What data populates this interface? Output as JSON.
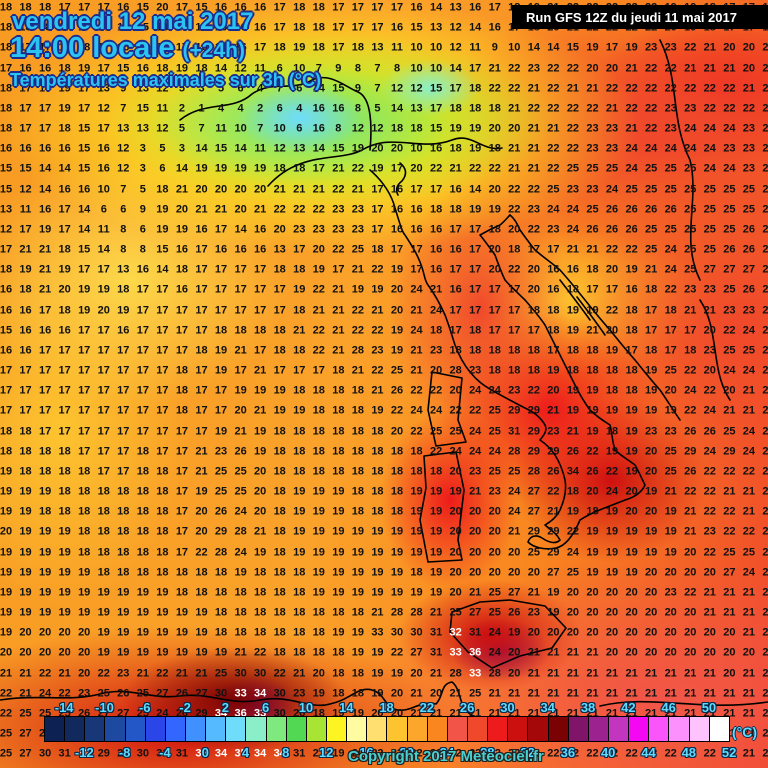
{
  "header": {
    "date_line": "vendredi 12 mai 2017",
    "time_line": "14:00 locale",
    "time_suffix": "(+24h)",
    "subtitle": "Températures maximales sur 3h (°C)",
    "run_info": "Run GFS 12Z du jeudi 11 mai 2017"
  },
  "footer": {
    "copyright": "Copyright 2017 Meteociel.fr",
    "unit_label": "(°C)"
  },
  "colorbar": {
    "unit": "°C",
    "cell_colors": [
      "#0D2152",
      "#11295D",
      "#173779",
      "#1D49A0",
      "#2356C6",
      "#2B46E8",
      "#3366FF",
      "#4090FF",
      "#55BAFF",
      "#6FDCFA",
      "#8AEFC9",
      "#7FE87F",
      "#52D852",
      "#A8E433",
      "#FCF521",
      "#FFFBA1",
      "#FEDF70",
      "#FDC42F",
      "#FCA62B",
      "#F9861F",
      "#F25548",
      "#F0482B",
      "#ED1B1B",
      "#CC0F0F",
      "#A50808",
      "#7A0202",
      "#7F1468",
      "#9C2290",
      "#C135BF",
      "#F408F4",
      "#FA55FA",
      "#FC90FC",
      "#FEC2FE",
      "#FFFFFF"
    ],
    "range_min": -16,
    "range_max": 52,
    "degrees_per_cell": 2,
    "top_labels": [
      "-14",
      "-10",
      "-6",
      "-2",
      "2",
      "6",
      "10",
      "14",
      "18",
      "22",
      "26",
      "30",
      "34",
      "38",
      "42",
      "46",
      "50"
    ],
    "bottom_labels": [
      "-12",
      "-8",
      "-4",
      "0",
      "4",
      "8",
      "12",
      "16",
      "20",
      "24",
      "28",
      "32",
      "36",
      "40",
      "44",
      "48",
      "52"
    ]
  },
  "map": {
    "description": "grid of 3h-max temperature values (°C), 40 columns x 38 rows",
    "rows": [
      "18 18 18 17 17 17 16 15 20 17 15 16 16 16 17 18 18 17 17 17 17 16 14 13 16 17 18 19 21 22 22 22 22 22 19 19 18 17 17 16",
      "18 18 18 17 17 17 16 15 18 17 16 16 16 16 17 18 18 17 17 17 16 15 13 12 14 16 17 18 20 21 22 22 22 22 20 19 18 17 17 16",
      "18 17 17 18 18 17 16 15 17 17 16 16 16 17 18 19 18 17 18 13 11 10 10 12 11 9 10 14 14 15 19 17 19 23 23 22 21 20 20 20",
      "17 16 16 18 19 17 15 16 18 19 18 14 12 11 6 10 7 9 8 7 8 10 10 14 17 21 22 23 22 22 20 20 21 22 22 21 21 21 20 20",
      "18 17 17 19 17 13 9 13 12 5 3 5 6 4 7 6 14 15 9 7 12 12 15 17 18 22 22 21 22 21 21 22 22 22 22 22 22 22 21 21",
      "18 17 17 19 17 12 7 15 11 2 1 4 4 2 6 4 16 16 8 5 14 13 17 18 18 18 21 22 22 22 22 21 22 22 23 23 22 22 22 23",
      "18 17 17 18 15 17 13 13 12 5 7 11 10 7 10 6 16 8 12 12 18 18 15 19 19 20 20 21 21 22 23 23 21 22 23 24 24 24 23 23",
      "16 16 16 16 15 16 12 3 5 3 14 15 14 11 12 13 14 15 19 20 20 10 16 18 19 18 21 21 22 22 23 23 24 24 24 24 24 23 23 23",
      "15 15 14 14 15 16 12 3 6 14 19 19 19 19 18 18 17 21 22 19 17 20 22 21 22 22 21 21 22 25 25 25 24 25 25 25 24 24 23 23",
      "15 12 14 16 16 10 7 5 18 21 20 20 20 20 21 21 21 22 21 17 16 17 17 16 14 20 22 22 25 23 23 24 25 25 25 25 25 25 25 25",
      "13 11 16 17 14 6 6 9 19 20 21 21 20 21 22 22 22 23 23 17 16 16 18 18 19 19 22 23 24 24 25 26 26 26 26 25 25 25 25 26",
      "12 17 19 17 14 11 8 6 19 19 16 17 14 16 20 23 23 23 23 17 16 16 16 17 17 18 20 22 23 24 26 26 26 25 25 25 25 25 26 26",
      "17 21 21 18 15 14 8 8 15 16 17 16 16 16 13 17 20 22 25 18 17 17 16 16 17 20 18 17 17 21 21 22 22 25 24 25 25 26 26 26",
      "18 19 21 19 17 17 13 16 14 18 17 17 17 17 18 18 19 17 21 22 19 17 16 17 17 20 22 20 16 16 18 20 19 21 24 25 27 27 27 27",
      "16 18 21 20 19 19 18 17 17 16 17 17 17 17 17 19 22 21 19 19 20 24 21 16 17 17 17 20 16 18 17 17 16 18 22 23 23 25 26 28",
      "16 16 17 18 19 20 19 17 17 17 17 17 17 17 17 18 21 21 22 21 20 21 24 17 17 17 17 18 18 19 19 22 18 17 18 21 21 23 23 26",
      "15 16 16 16 17 17 16 17 17 17 17 18 18 18 18 21 22 21 22 22 19 24 18 17 18 17 17 17 18 19 21 20 18 17 17 17 20 22 24 24",
      "16 16 17 17 17 17 17 17 17 17 18 19 21 17 18 18 22 21 28 23 19 21 23 18 18 18 18 18 17 18 18 19 17 18 17 18 23 25 25 25",
      "17 17 17 17 17 17 17 17 17 18 17 19 17 21 17 17 17 18 21 22 25 21 20 28 23 18 18 18 19 18 18 18 18 19 25 22 20 24 24 24",
      "17 17 17 17 17 17 17 17 17 18 17 17 19 19 19 18 18 18 18 21 26 22 22 20 24 24 23 22 20 19 19 18 18 19 20 24 22 20 21 26",
      "17 17 17 17 17 17 17 17 17 18 17 17 20 21 19 19 18 18 18 19 22 24 24 22 22 25 29 29 21 19 19 19 19 19 19 22 24 21 21 23",
      "18 18 17 17 17 17 17 17 17 17 17 19 21 19 18 18 18 18 18 18 20 22 25 25 24 25 31 29 23 21 19 18 19 23 23 26 26 25 24 24",
      "18 18 18 18 17 17 17 18 17 17 21 23 26 19 18 18 18 18 18 18 18 18 22 24 24 24 28 29 29 26 22 19 19 20 25 29 24 29 24 23",
      "19 18 18 18 18 17 17 18 18 17 21 25 25 20 18 18 18 18 18 18 18 18 18 20 23 25 25 28 26 34 26 22 19 20 25 26 22 22 22 22",
      "19 19 19 18 18 18 18 18 18 17 19 25 25 20 18 19 19 19 18 18 18 19 19 19 21 23 24 27 22 18 20 24 20 19 21 22 22 21 21 21",
      "19 19 18 18 18 18 18 18 18 17 20 26 24 20 18 19 19 19 18 18 18 19 19 20 20 20 24 27 21 19 18 19 20 20 19 21 22 22 21 21",
      "20 19 19 19 18 18 18 18 18 17 20 29 28 21 18 19 19 19 19 19 19 19 19 20 20 20 21 29 29 22 19 19 19 19 19 21 23 22 22 21",
      "19 19 19 19 18 18 18 18 18 17 22 28 24 19 18 19 19 19 19 19 19 19 19 20 20 20 20 25 29 24 19 19 19 19 19 20 22 25 25 22",
      "19 19 19 19 19 18 18 18 18 18 18 18 19 18 18 18 19 19 19 19 19 18 19 20 20 20 20 20 27 25 19 19 19 20 20 20 20 27 24 22",
      "19 19 19 19 19 19 19 19 19 18 18 18 18 18 18 18 19 19 19 19 19 19 19 20 21 25 27 21 19 20 20 20 20 20 23 22 21 21 21 21",
      "19 19 19 19 19 19 19 19 19 19 19 18 18 18 18 18 18 18 18 21 28 28 21 25 27 25 26 23 19 20 20 20 20 20 20 20 21 21 21 21",
      "19 20 20 20 20 19 19 19 19 19 19 18 18 18 18 18 18 19 19 33 30 30 31 32 31 24 19 20 20 20 20 20 20 20 20 20 20 20 21 21",
      "20 20 20 20 20 19 19 19 19 19 19 19 21 22 18 18 18 18 19 19 22 27 31 33 36 24 20 21 21 21 21 20 20 20 20 20 20 20 20 21",
      "21 21 22 21 20 22 23 21 22 21 21 25 30 30 22 21 20 18 18 19 19 20 21 28 33 28 20 21 21 21 21 21 21 21 21 21 21 20 21 21",
      "22 21 24 22 23 25 26 25 27 26 27 30 33 34 30 23 19 18 18 19 20 21 20 21 25 21 21 21 21 21 21 21 21 21 21 21 21 21 21 20",
      "22 25 25 25 26 27 27 25 24 26 29 34 36 33 30 20 18 19 19 20 20 21 21 21 21 21 21 21 21 21 21 21 21 21 21 21 21 21 21 21",
      "25 27 29 30 31 30 30 31 32 33 33 34 34 34 33 25 21 20 20 21 21 21 22 22 22 22 22 22 22 22 22 22 22 22 22 22 22 21 21 21",
      "25 27 30 31 32 29 29 30 31 31 32 34 35 34 34 31 21 19 20 22 22 22 22 22 22 22 22 22 22 22 22 22 22 22 22 22 22 21 21 21"
    ],
    "white_cells": [
      [
        31,
        23
      ],
      [
        32,
        23
      ],
      [
        32,
        24
      ],
      [
        33,
        24
      ],
      [
        34,
        12
      ],
      [
        34,
        13
      ],
      [
        35,
        11
      ],
      [
        35,
        12
      ],
      [
        35,
        13
      ],
      [
        36,
        8
      ],
      [
        36,
        9
      ],
      [
        36,
        10
      ],
      [
        36,
        11
      ],
      [
        36,
        12
      ],
      [
        36,
        13
      ],
      [
        36,
        14
      ],
      [
        37,
        4
      ],
      [
        37,
        10
      ],
      [
        37,
        11
      ],
      [
        37,
        12
      ],
      [
        37,
        13
      ],
      [
        37,
        14
      ]
    ]
  }
}
